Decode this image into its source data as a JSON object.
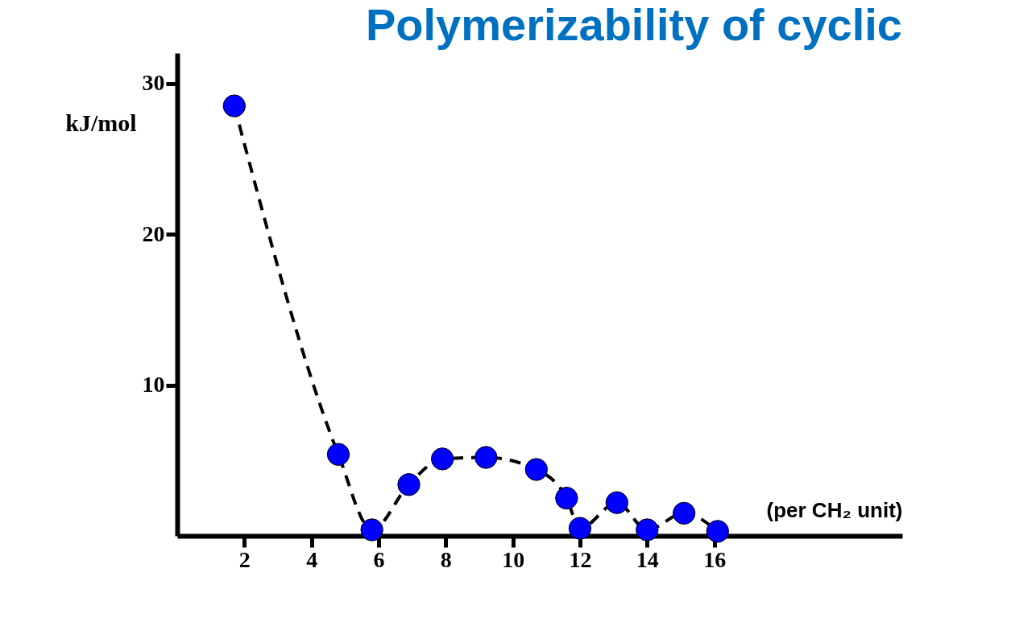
{
  "chart_data": {
    "type": "line",
    "title": "Polymerizability of cyclic",
    "ylabel": "kJ/mol",
    "xlabel": "(per CH₂ unit)",
    "x": [
      1.7,
      4.8,
      5.8,
      6.9,
      7.9,
      9.2,
      10.7,
      11.6,
      12.0,
      13.1,
      14.0,
      15.1,
      16.1
    ],
    "series": [
      {
        "color": "#0000ff",
        "values": [
          28.5,
          5.4,
          0.4,
          3.4,
          5.1,
          5.2,
          4.4,
          2.5,
          0.5,
          2.2,
          0.4,
          1.5,
          0.3
        ]
      }
    ],
    "xlim": [
      0,
      21.6
    ],
    "xticks": [
      2,
      4,
      6,
      8,
      10,
      12,
      14,
      16
    ],
    "ylim": [
      0,
      32
    ],
    "yticks": [
      10,
      20,
      30
    ],
    "marker": "circle",
    "line_style": "dashed",
    "grid": false
  }
}
